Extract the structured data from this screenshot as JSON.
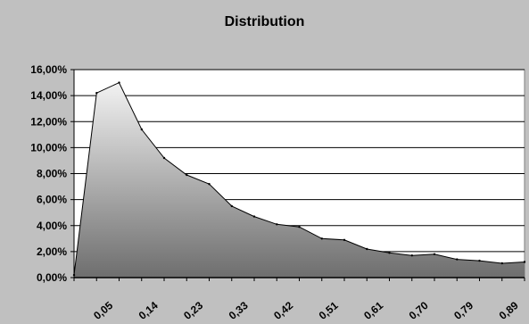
{
  "chart_data": {
    "type": "area",
    "title": "Distribution",
    "xlabel": "",
    "ylabel": "",
    "x_tick_labels": [
      "0,05",
      "0,14",
      "0,23",
      "0,33",
      "0,42",
      "0,51",
      "0,61",
      "0,70",
      "0,79",
      "0,89"
    ],
    "y_tick_labels": [
      "0,00%",
      "2,00%",
      "4,00%",
      "6,00%",
      "8,00%",
      "10,00%",
      "12,00%",
      "14,00%",
      "16,00%"
    ],
    "ylim": [
      0,
      0.16
    ],
    "grid": true,
    "legend": "none",
    "values": [
      0.002,
      0.142,
      0.15,
      0.114,
      0.092,
      0.079,
      0.072,
      0.055,
      0.047,
      0.041,
      0.039,
      0.03,
      0.029,
      0.022,
      0.019,
      0.017,
      0.018,
      0.014,
      0.013,
      0.011,
      0.012
    ],
    "colors": {
      "background": "#c0c0c0",
      "plot_area": "#ffffff",
      "area_top": "#f2f2f2",
      "area_bottom": "#6e6e6e",
      "line": "#000000"
    }
  }
}
